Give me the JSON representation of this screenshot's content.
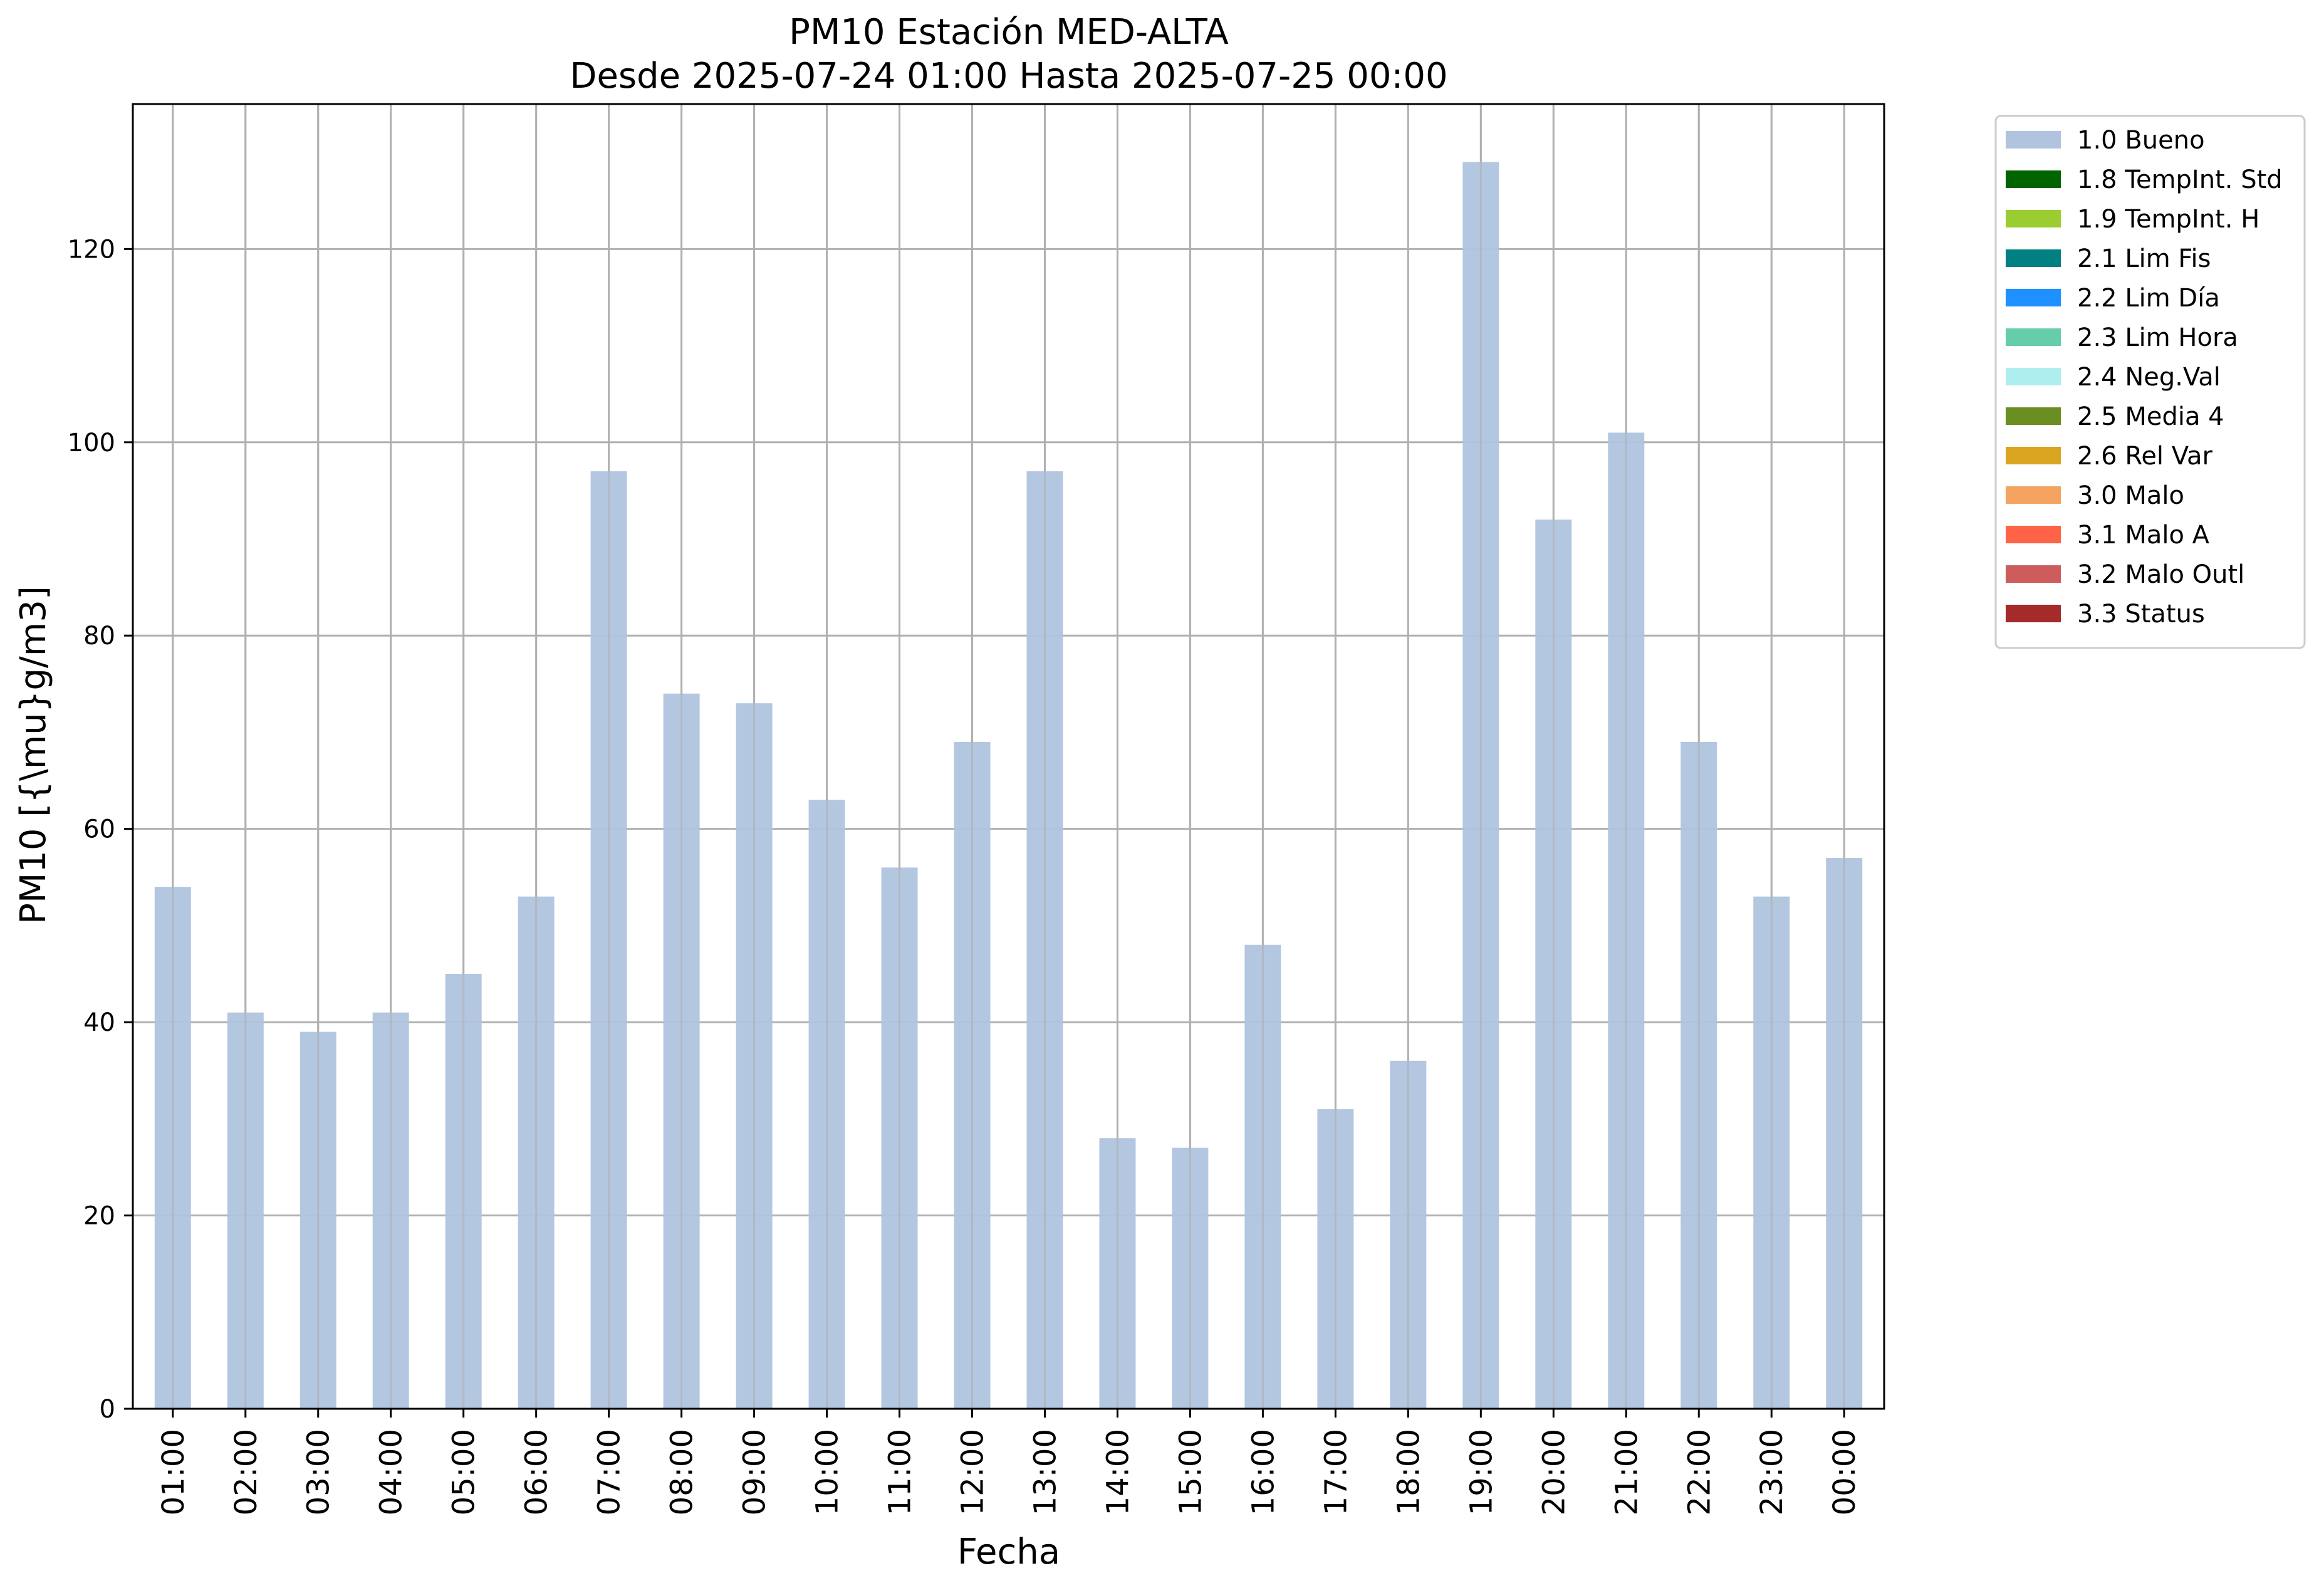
{
  "chart_data": {
    "type": "bar",
    "title_line1": "PM10 Estación MED-ALTA",
    "title_line2": "Desde 2025-07-24 01:00 Hasta 2025-07-25 00:00",
    "xlabel": "Fecha",
    "ylabel": "PM10 [{\\mu}g/m3]",
    "ylim": [
      0,
      135
    ],
    "yticks": [
      0,
      20,
      40,
      60,
      80,
      100,
      120
    ],
    "grid": true,
    "legend_position": "outside-top-right",
    "categories": [
      "01:00",
      "02:00",
      "03:00",
      "04:00",
      "05:00",
      "06:00",
      "07:00",
      "08:00",
      "09:00",
      "10:00",
      "11:00",
      "12:00",
      "13:00",
      "14:00",
      "15:00",
      "16:00",
      "17:00",
      "18:00",
      "19:00",
      "20:00",
      "21:00",
      "22:00",
      "23:00",
      "00:00"
    ],
    "series": [
      {
        "name": "1.0 Bueno",
        "color": "#b0c4de",
        "values": [
          54,
          41,
          39,
          41,
          45,
          53,
          97,
          74,
          73,
          63,
          56,
          69,
          97,
          28,
          27,
          48,
          31,
          36,
          129,
          92,
          101,
          69,
          53,
          57
        ]
      }
    ],
    "legend": [
      {
        "label": "1.0 Bueno",
        "color": "#b0c4de"
      },
      {
        "label": "1.8 TempInt. Std",
        "color": "#006400"
      },
      {
        "label": "1.9 TempInt. H",
        "color": "#9acd32"
      },
      {
        "label": "2.1 Lim Fis",
        "color": "#008080"
      },
      {
        "label": "2.2 Lim Día",
        "color": "#1e90ff"
      },
      {
        "label": "2.3 Lim Hora",
        "color": "#66cdaa"
      },
      {
        "label": "2.4 Neg.Val",
        "color": "#afeeee"
      },
      {
        "label": "2.5 Media 4",
        "color": "#6b8e23"
      },
      {
        "label": "2.6 Rel Var",
        "color": "#daa520"
      },
      {
        "label": "3.0 Malo",
        "color": "#f4a460"
      },
      {
        "label": "3.1 Malo A",
        "color": "#ff6347"
      },
      {
        "label": "3.2 Malo Outl",
        "color": "#cd5c5c"
      },
      {
        "label": "3.3 Status",
        "color": "#a52a2a"
      }
    ]
  }
}
